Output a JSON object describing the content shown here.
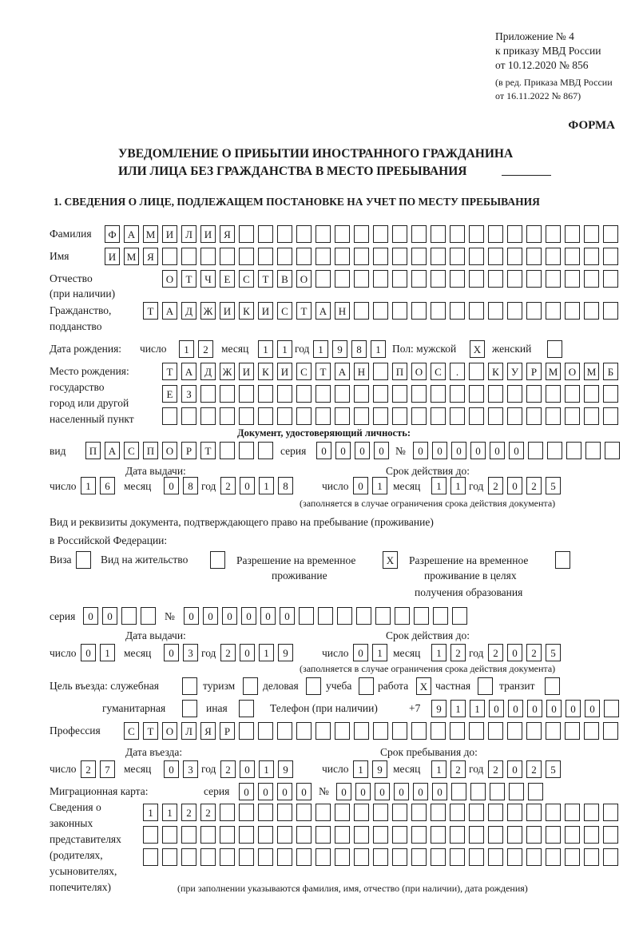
{
  "header": {
    "appendix": "Приложение № 4",
    "order": "к приказу МВД России",
    "order_date": "от 10.12.2020 № 856",
    "edit1": "(в ред. Приказа МВД России",
    "edit2": "от 16.11.2022 № 867)",
    "form": "ФОРМА",
    "title1": "УВЕДОМЛЕНИЕ О ПРИБЫТИИ ИНОСТРАННОГО ГРАЖДАНИНА",
    "title2": "ИЛИ ЛИЦА БЕЗ ГРАЖДАНСТВА В МЕСТО ПРЕБЫВАНИЯ",
    "section1": "1. СВЕДЕНИЯ О ЛИЦЕ, ПОДЛЕЖАЩЕМ ПОСТАНОВКЕ НА УЧЕТ ПО МЕСТУ ПРЕБЫВАНИЯ"
  },
  "labels": {
    "surname": "Фамилия",
    "name": "Имя",
    "patronymic": "Отчество",
    "if_any": "(при наличии)",
    "citizenship": "Гражданство,",
    "subject": "подданство",
    "birth_date": "Дата рождения:",
    "day": "число",
    "month": "месяц",
    "year": "год",
    "sex_male": "Пол: мужской",
    "sex_female": "женский",
    "birth_place": "Место рождения:",
    "state": "государство",
    "city": "город или другой",
    "locality": "населенный пункт",
    "id_doc": "Документ, удостоверяющий личность:",
    "kind": "вид",
    "series": "серия",
    "number": "№",
    "issue_date": "Дата выдачи:",
    "valid_until": "Срок действия до:",
    "valid_note": "(заполняется в случае ограничения срока действия документа)",
    "right_doc1": "Вид и реквизиты документа, подтверждающего право на пребывание (проживание)",
    "right_doc2": "в Российской Федерации:",
    "visa": "Виза",
    "residence": "Вид на жительство",
    "temp_permit1": "Разрешение на временное",
    "temp_permit2": "проживание",
    "edu_permit1": "Разрешение на временное",
    "edu_permit2": "проживание в целях",
    "edu_permit3": "получения образования",
    "purpose": "Цель въезда: служебная",
    "tourism": "туризм",
    "business": "деловая",
    "study": "учеба",
    "work": "работа",
    "private": "частная",
    "transit": "транзит",
    "humanitarian": "гуманитарная",
    "other": "иная",
    "phone": "Телефон (при наличии)",
    "phone_prefix": "+7",
    "profession": "Профессия",
    "entry_date": "Дата въезда:",
    "stay_until": "Срок пребывания до:",
    "migration_card": "Миграционная карта:",
    "rep1": "Сведения о",
    "rep2": "законных",
    "rep3": "представителях",
    "rep4": "(родителях,",
    "rep5": "усыновителях,",
    "rep6": "попечителях)",
    "rep_note": "(при заполнении указываются фамилия, имя, отчество (при наличии), дата рождения)"
  },
  "fields": {
    "surname": "ФАМИЛИЯ",
    "name": "ИМЯ",
    "patronymic": "ОТЧЕСТВО",
    "citizenship": "ТАДЖИКИСТАН",
    "birth": {
      "day": "12",
      "month": "11",
      "year": "1981"
    },
    "sex_male": "X",
    "sex_female": "",
    "birth_place1": "ТАДЖИКИСТАН ПОС. КУРМОМБ",
    "birth_place2": "ЕЗ",
    "birth_place3": "",
    "id_kind": "ПАСПОРТ",
    "id_series": "0000",
    "id_number": "000000",
    "id_issue": {
      "day": "16",
      "month": "08",
      "year": "2018"
    },
    "id_valid": {
      "day": "01",
      "month": "11",
      "year": "2025"
    },
    "visa": "",
    "residence": "",
    "temp_permit": "X",
    "edu_permit": "",
    "right_series": "00",
    "right_number": "000000",
    "right_issue": {
      "day": "01",
      "month": "03",
      "year": "2019"
    },
    "right_valid": {
      "day": "01",
      "month": "12",
      "year": "2025"
    },
    "purpose": {
      "service": "",
      "tourism": "",
      "business": "",
      "study": "",
      "work": "X",
      "private": "",
      "transit": "",
      "humanitarian": "",
      "other": ""
    },
    "phone": "911000000",
    "profession": "СТОЛЯР",
    "entry": {
      "day": "27",
      "month": "03",
      "year": "2019"
    },
    "stay_until": {
      "day": "19",
      "month": "12",
      "year": "2025"
    },
    "mc_series": "0000",
    "mc_number": "000000",
    "rep1": "1122",
    "rep2": "",
    "rep3": ""
  }
}
